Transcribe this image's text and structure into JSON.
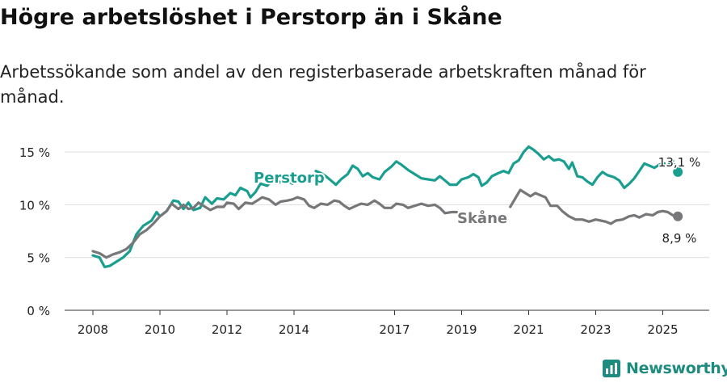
{
  "title": "Högre arbetslöshet i Perstorp än i Skåne",
  "subtitle": "Arbetssökande som andel av den registerbaserade arbetskraften månad för månad.",
  "brand": {
    "name": "Newsworthy"
  },
  "colors": {
    "perstorp": "#1a9e8f",
    "skane": "#77777a",
    "grid": "#dddddd",
    "axis": "#333333"
  },
  "chart_data": {
    "type": "line",
    "title": "Högre arbetslöshet i Perstorp än i Skåne",
    "subtitle": "Arbetssökande som andel av den registerbaserade arbetskraften månad för månad.",
    "xlabel": "",
    "ylabel": "",
    "xlim": [
      2007.8,
      2026.2
    ],
    "ylim": [
      0,
      16
    ],
    "y_ticks": [
      0,
      5,
      10,
      15
    ],
    "y_tick_labels": [
      "0 %",
      "5 %",
      "10 %",
      "15 %"
    ],
    "x_ticks": [
      2008,
      2010,
      2012,
      2014,
      2017,
      2019,
      2021,
      2023,
      2025
    ],
    "x_tick_labels": [
      "2008",
      "2010",
      "2012",
      "2014",
      "2017",
      "2019",
      "2021",
      "2023",
      "2025"
    ],
    "grid": true,
    "series": [
      {
        "name": "Perstorp",
        "end_label": "13,1 %",
        "segments": [
          [
            [
              2008.0,
              5.2
            ],
            [
              2008.2,
              5.0
            ],
            [
              2008.35,
              4.1
            ],
            [
              2008.5,
              4.2
            ],
            [
              2008.7,
              4.6
            ],
            [
              2008.9,
              5.0
            ],
            [
              2009.1,
              5.6
            ],
            [
              2009.3,
              7.2
            ],
            [
              2009.5,
              8.0
            ],
            [
              2009.75,
              8.5
            ],
            [
              2009.9,
              9.3
            ],
            [
              2010.0,
              8.9
            ],
            [
              2010.2,
              9.4
            ],
            [
              2010.4,
              10.4
            ],
            [
              2010.55,
              10.3
            ],
            [
              2010.7,
              9.6
            ],
            [
              2010.85,
              10.2
            ],
            [
              2011.0,
              9.5
            ],
            [
              2011.2,
              9.7
            ],
            [
              2011.35,
              10.7
            ],
            [
              2011.55,
              10.1
            ],
            [
              2011.7,
              10.6
            ],
            [
              2011.9,
              10.5
            ],
            [
              2012.1,
              11.1
            ],
            [
              2012.25,
              10.9
            ],
            [
              2012.4,
              11.6
            ],
            [
              2012.6,
              11.3
            ],
            [
              2012.7,
              10.7
            ],
            [
              2012.85,
              11.2
            ],
            [
              2013.0,
              12.0
            ],
            [
              2013.2,
              11.8
            ],
            [
              2013.4,
              12.5
            ],
            [
              2013.6,
              12.1
            ],
            [
              2013.8,
              12.3
            ],
            [
              2013.95,
              12.0
            ],
            [
              2014.1,
              12.5
            ]
          ],
          [
            [
              2014.65,
              13.2
            ],
            [
              2014.8,
              13.0
            ],
            [
              2014.95,
              12.7
            ],
            [
              2015.1,
              12.3
            ],
            [
              2015.25,
              11.9
            ],
            [
              2015.4,
              12.4
            ],
            [
              2015.6,
              12.9
            ],
            [
              2015.75,
              13.7
            ],
            [
              2015.9,
              13.4
            ],
            [
              2016.05,
              12.7
            ],
            [
              2016.2,
              13.0
            ],
            [
              2016.35,
              12.6
            ],
            [
              2016.55,
              12.4
            ],
            [
              2016.7,
              13.1
            ],
            [
              2016.9,
              13.6
            ],
            [
              2017.05,
              14.1
            ],
            [
              2017.2,
              13.8
            ],
            [
              2017.4,
              13.3
            ],
            [
              2017.6,
              12.9
            ],
            [
              2017.8,
              12.5
            ],
            [
              2018.0,
              12.4
            ],
            [
              2018.2,
              12.3
            ],
            [
              2018.35,
              12.7
            ],
            [
              2018.5,
              12.3
            ],
            [
              2018.65,
              11.9
            ],
            [
              2018.85,
              11.9
            ],
            [
              2019.0,
              12.4
            ],
            [
              2019.2,
              12.6
            ],
            [
              2019.35,
              12.9
            ],
            [
              2019.5,
              12.6
            ],
            [
              2019.6,
              11.8
            ],
            [
              2019.75,
              12.1
            ],
            [
              2019.9,
              12.7
            ],
            [
              2020.1,
              13.0
            ],
            [
              2020.25,
              13.2
            ],
            [
              2020.4,
              13.0
            ],
            [
              2020.55,
              13.9
            ],
            [
              2020.7,
              14.2
            ],
            [
              2020.85,
              15.0
            ],
            [
              2021.0,
              15.5
            ],
            [
              2021.15,
              15.2
            ],
            [
              2021.3,
              14.8
            ],
            [
              2021.45,
              14.3
            ],
            [
              2021.6,
              14.6
            ],
            [
              2021.75,
              14.2
            ],
            [
              2021.9,
              14.3
            ],
            [
              2022.05,
              14.1
            ],
            [
              2022.2,
              13.4
            ],
            [
              2022.3,
              14.0
            ],
            [
              2022.45,
              12.7
            ],
            [
              2022.6,
              12.6
            ],
            [
              2022.75,
              12.2
            ],
            [
              2022.9,
              11.9
            ],
            [
              2023.05,
              12.6
            ],
            [
              2023.2,
              13.1
            ],
            [
              2023.35,
              12.8
            ],
            [
              2023.55,
              12.6
            ],
            [
              2023.7,
              12.3
            ],
            [
              2023.85,
              11.6
            ],
            [
              2024.0,
              12.0
            ],
            [
              2024.15,
              12.5
            ],
            [
              2024.3,
              13.2
            ],
            [
              2024.45,
              13.9
            ],
            [
              2024.6,
              13.7
            ],
            [
              2024.75,
              13.5
            ],
            [
              2024.9,
              13.8
            ],
            [
              2025.05,
              13.9
            ],
            [
              2025.15,
              13.7
            ],
            [
              2025.3,
              14.2
            ]
          ]
        ],
        "last_point": [
          2025.45,
          13.1
        ]
      },
      {
        "name": "Skåne",
        "end_label": "8,9 %",
        "segments": [
          [
            [
              2008.0,
              5.6
            ],
            [
              2008.2,
              5.4
            ],
            [
              2008.4,
              5.0
            ],
            [
              2008.6,
              5.3
            ],
            [
              2008.8,
              5.5
            ],
            [
              2009.0,
              5.8
            ],
            [
              2009.2,
              6.4
            ],
            [
              2009.4,
              7.2
            ],
            [
              2009.6,
              7.6
            ],
            [
              2009.8,
              8.2
            ],
            [
              2010.0,
              8.9
            ],
            [
              2010.2,
              9.4
            ],
            [
              2010.35,
              10.1
            ],
            [
              2010.55,
              9.6
            ],
            [
              2010.7,
              10.0
            ],
            [
              2010.85,
              9.6
            ],
            [
              2011.0,
              9.7
            ],
            [
              2011.15,
              10.2
            ],
            [
              2011.3,
              9.9
            ],
            [
              2011.5,
              9.5
            ],
            [
              2011.7,
              9.8
            ],
            [
              2011.9,
              9.8
            ],
            [
              2012.0,
              10.2
            ],
            [
              2012.2,
              10.1
            ],
            [
              2012.35,
              9.6
            ],
            [
              2012.55,
              10.2
            ],
            [
              2012.75,
              10.1
            ],
            [
              2012.9,
              10.4
            ],
            [
              2013.05,
              10.7
            ],
            [
              2013.25,
              10.5
            ],
            [
              2013.45,
              10.0
            ],
            [
              2013.6,
              10.3
            ],
            [
              2013.8,
              10.4
            ],
            [
              2013.95,
              10.5
            ],
            [
              2014.1,
              10.7
            ],
            [
              2014.3,
              10.5
            ],
            [
              2014.45,
              9.9
            ],
            [
              2014.6,
              9.7
            ],
            [
              2014.8,
              10.1
            ],
            [
              2015.0,
              10.0
            ],
            [
              2015.2,
              10.4
            ],
            [
              2015.35,
              10.3
            ],
            [
              2015.5,
              9.9
            ],
            [
              2015.65,
              9.6
            ],
            [
              2015.85,
              9.9
            ],
            [
              2016.0,
              10.1
            ],
            [
              2016.2,
              10.0
            ],
            [
              2016.4,
              10.4
            ],
            [
              2016.55,
              10.1
            ],
            [
              2016.7,
              9.7
            ],
            [
              2016.9,
              9.7
            ],
            [
              2017.05,
              10.1
            ],
            [
              2017.25,
              10.0
            ],
            [
              2017.4,
              9.7
            ],
            [
              2017.6,
              9.9
            ],
            [
              2017.8,
              10.1
            ],
            [
              2018.0,
              9.9
            ],
            [
              2018.2,
              10.0
            ],
            [
              2018.35,
              9.7
            ],
            [
              2018.5,
              9.2
            ],
            [
              2018.7,
              9.3
            ],
            [
              2018.85,
              9.3
            ]
          ],
          [
            [
              2020.45,
              9.8
            ],
            [
              2020.6,
              10.6
            ],
            [
              2020.75,
              11.4
            ],
            [
              2020.9,
              11.1
            ],
            [
              2021.05,
              10.8
            ],
            [
              2021.2,
              11.1
            ],
            [
              2021.35,
              10.9
            ],
            [
              2021.5,
              10.7
            ],
            [
              2021.65,
              9.9
            ],
            [
              2021.85,
              9.9
            ],
            [
              2022.0,
              9.4
            ],
            [
              2022.2,
              8.9
            ],
            [
              2022.4,
              8.6
            ],
            [
              2022.6,
              8.6
            ],
            [
              2022.8,
              8.4
            ],
            [
              2023.0,
              8.6
            ],
            [
              2023.15,
              8.5
            ],
            [
              2023.3,
              8.4
            ],
            [
              2023.45,
              8.2
            ],
            [
              2023.6,
              8.5
            ],
            [
              2023.8,
              8.6
            ],
            [
              2024.0,
              8.9
            ],
            [
              2024.15,
              9.0
            ],
            [
              2024.3,
              8.8
            ],
            [
              2024.5,
              9.1
            ],
            [
              2024.7,
              9.0
            ],
            [
              2024.85,
              9.3
            ],
            [
              2025.0,
              9.4
            ],
            [
              2025.15,
              9.3
            ],
            [
              2025.3,
              9.0
            ]
          ]
        ],
        "last_point": [
          2025.45,
          8.9
        ]
      }
    ]
  }
}
